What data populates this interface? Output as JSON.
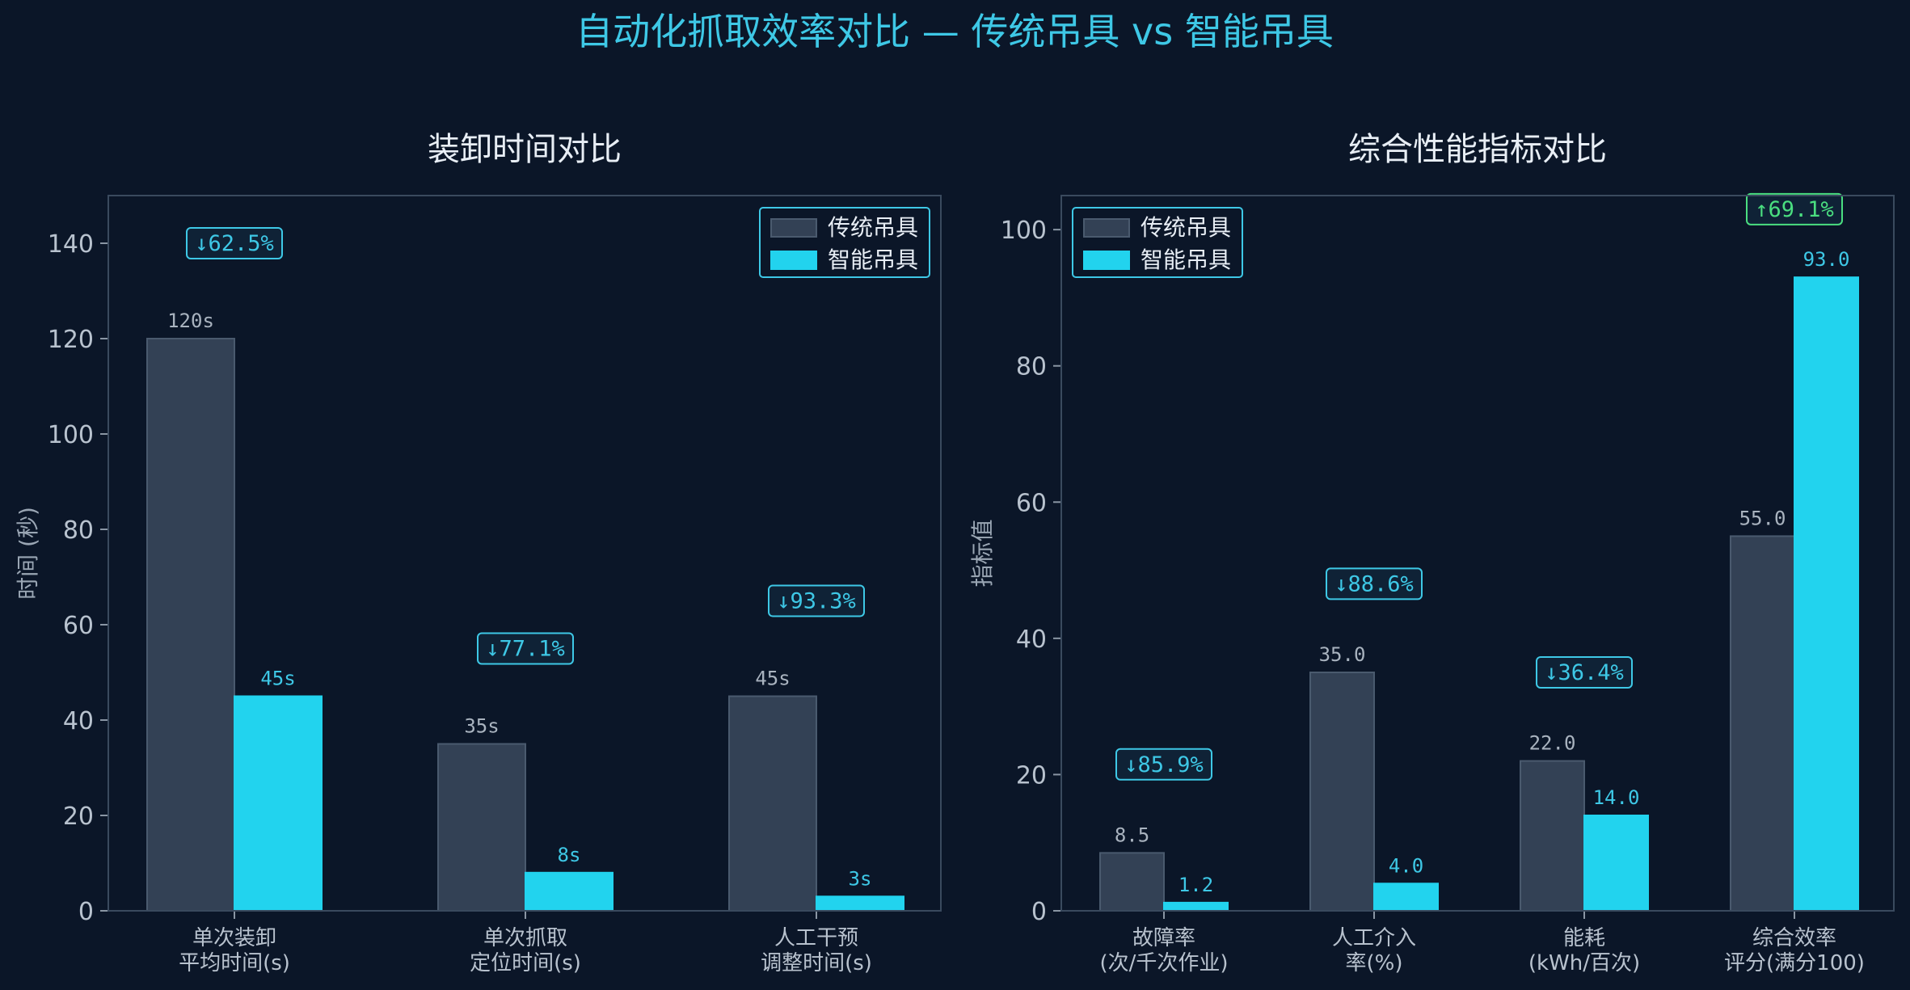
{
  "title": "自动化抓取效率对比 — 传统吊具 vs 智能吊具",
  "colors": {
    "background": "#0b1628",
    "traditional": "#334155",
    "traditional_edge": "#4a5a6e",
    "smart": "#22d3ee",
    "accent": "#3ec8e6",
    "decrease_badge": "#3ec8e6",
    "increase_badge": "#4ade80"
  },
  "chart_data": [
    {
      "type": "bar",
      "title": "装卸时间对比",
      "xlabel": "",
      "ylabel": "时间 (秒)",
      "ylim": [
        0,
        150
      ],
      "yticks": [
        0,
        20,
        40,
        60,
        80,
        100,
        120,
        140
      ],
      "categories": [
        [
          "单次装卸",
          "平均时间(s)"
        ],
        [
          "单次抓取",
          "定位时间(s)"
        ],
        [
          "人工干预",
          "调整时间(s)"
        ]
      ],
      "series": [
        {
          "name": "传统吊具",
          "values": [
            120,
            35,
            45
          ],
          "labels": [
            "120s",
            "35s",
            "45s"
          ]
        },
        {
          "name": "智能吊具",
          "values": [
            45,
            8,
            3
          ],
          "labels": [
            "45s",
            "8s",
            "3s"
          ]
        }
      ],
      "annotations": [
        {
          "text": "↓62.5%",
          "y": 140,
          "direction": "down"
        },
        {
          "text": "↓77.1%",
          "y": 55,
          "direction": "down"
        },
        {
          "text": "↓93.3%",
          "y": 65,
          "direction": "down"
        }
      ],
      "legend": "top-right"
    },
    {
      "type": "bar",
      "title": "综合性能指标对比",
      "xlabel": "",
      "ylabel": "指标值",
      "ylim": [
        0,
        105
      ],
      "yticks": [
        0,
        20,
        40,
        60,
        80,
        100
      ],
      "categories": [
        [
          "故障率",
          "(次/千次作业)"
        ],
        [
          "人工介入",
          "率(%)"
        ],
        [
          "能耗",
          "(kWh/百次)"
        ],
        [
          "综合效率",
          "评分(满分100)"
        ]
      ],
      "series": [
        {
          "name": "传统吊具",
          "values": [
            8.5,
            35.0,
            22.0,
            55.0
          ],
          "labels": [
            "8.5",
            "35.0",
            "22.0",
            "55.0"
          ]
        },
        {
          "name": "智能吊具",
          "values": [
            1.2,
            4.0,
            14.0,
            93.0
          ],
          "labels": [
            "1.2",
            "4.0",
            "14.0",
            "93.0"
          ]
        }
      ],
      "annotations": [
        {
          "text": "↓85.9%",
          "y": 21.5,
          "direction": "down"
        },
        {
          "text": "↓88.6%",
          "y": 48,
          "direction": "down"
        },
        {
          "text": "↓36.4%",
          "y": 35,
          "direction": "down"
        },
        {
          "text": "↑69.1%",
          "y": 103,
          "direction": "up"
        }
      ],
      "legend": "top-left"
    }
  ]
}
